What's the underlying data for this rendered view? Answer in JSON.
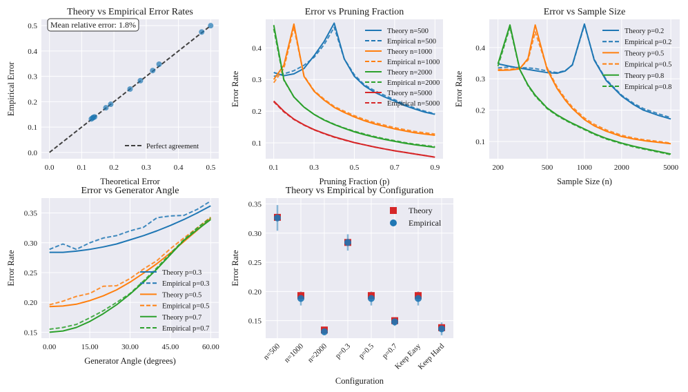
{
  "chart_data": [
    {
      "id": "p1",
      "type": "scatter",
      "title": "Theory vs Empirical Error Rates",
      "xlabel": "Theoretical Error",
      "ylabel": "Empirical Error",
      "xlim": [
        -0.025,
        0.525
      ],
      "ylim": [
        -0.025,
        0.525
      ],
      "xticks": [
        0.0,
        0.1,
        0.2,
        0.3,
        0.4,
        0.5
      ],
      "yticks": [
        0.0,
        0.1,
        0.2,
        0.3,
        0.4,
        0.5
      ],
      "tick_decimals": 1,
      "annotation": "Mean relative error: 1.8%",
      "reference_line": {
        "name": "Perfect agreement",
        "from": [
          0,
          0
        ],
        "to": [
          0.5,
          0.5
        ],
        "color": "#404040"
      },
      "points": [
        [
          0.13,
          0.132
        ],
        [
          0.134,
          0.136
        ],
        [
          0.136,
          0.138
        ],
        [
          0.14,
          0.14
        ],
        [
          0.175,
          0.176
        ],
        [
          0.19,
          0.19
        ],
        [
          0.25,
          0.25
        ],
        [
          0.282,
          0.283
        ],
        [
          0.32,
          0.323
        ],
        [
          0.34,
          0.348
        ],
        [
          0.472,
          0.475
        ],
        [
          0.5,
          0.5
        ]
      ],
      "point_color": "#1f77b4",
      "legend": [
        {
          "name": "Perfect agreement",
          "style": "dashed",
          "color": "#404040"
        }
      ]
    },
    {
      "id": "p2",
      "type": "line",
      "title": "Error vs Pruning Fraction",
      "xlabel": "Pruning Fraction (p)",
      "ylabel": "Error Rate",
      "xlim": [
        0.06,
        0.94
      ],
      "ylim": [
        0.05,
        0.49
      ],
      "xticks": [
        0.1,
        0.3,
        0.5,
        0.7,
        0.9
      ],
      "yticks": [
        0.1,
        0.2,
        0.3,
        0.4
      ],
      "tick_decimals": 1,
      "x": [
        0.1,
        0.15,
        0.2,
        0.25,
        0.3,
        0.35,
        0.4,
        0.45,
        0.5,
        0.55,
        0.6,
        0.65,
        0.7,
        0.75,
        0.8,
        0.85,
        0.9
      ],
      "series": [
        {
          "name": "Theory n=500",
          "color": "#1f77b4",
          "style": "solid",
          "values": [
            0.322,
            0.312,
            0.318,
            0.335,
            0.375,
            0.42,
            0.478,
            0.365,
            0.31,
            0.28,
            0.26,
            0.245,
            0.232,
            0.218,
            0.207,
            0.197,
            0.19
          ]
        },
        {
          "name": "Empirical n=500",
          "color": "#1f77b4",
          "style": "dashed",
          "values": [
            0.31,
            0.318,
            0.328,
            0.345,
            0.37,
            0.41,
            0.465,
            0.365,
            0.315,
            0.283,
            0.265,
            0.25,
            0.236,
            0.222,
            0.21,
            0.2,
            0.192
          ]
        },
        {
          "name": "Theory n=1000",
          "color": "#ff7f0e",
          "style": "solid",
          "values": [
            0.3,
            0.345,
            0.475,
            0.31,
            0.263,
            0.235,
            0.212,
            0.196,
            0.182,
            0.17,
            0.16,
            0.152,
            0.144,
            0.138,
            0.132,
            0.128,
            0.124
          ]
        },
        {
          "name": "Empirical n=1000",
          "color": "#ff7f0e",
          "style": "dashed",
          "values": [
            0.29,
            0.335,
            0.465,
            0.312,
            0.265,
            0.238,
            0.215,
            0.2,
            0.186,
            0.174,
            0.164,
            0.156,
            0.148,
            0.142,
            0.136,
            0.132,
            0.128
          ]
        },
        {
          "name": "Theory n=2000",
          "color": "#2ca02c",
          "style": "solid",
          "values": [
            0.472,
            0.3,
            0.245,
            0.213,
            0.19,
            0.172,
            0.158,
            0.146,
            0.135,
            0.126,
            0.118,
            0.111,
            0.105,
            0.099,
            0.094,
            0.09,
            0.086
          ]
        },
        {
          "name": "Empirical n=2000",
          "color": "#2ca02c",
          "style": "dashed",
          "values": [
            0.46,
            0.298,
            0.245,
            0.213,
            0.19,
            0.173,
            0.159,
            0.147,
            0.137,
            0.128,
            0.12,
            0.113,
            0.107,
            0.101,
            0.096,
            0.092,
            0.088
          ]
        },
        {
          "name": "Theory n=5000",
          "color": "#d62728",
          "style": "solid",
          "values": [
            0.232,
            0.2,
            0.175,
            0.157,
            0.142,
            0.13,
            0.119,
            0.11,
            0.101,
            0.094,
            0.087,
            0.081,
            0.075,
            0.07,
            0.065,
            0.06,
            0.055
          ]
        },
        {
          "name": "Empirical n=5000",
          "color": "#d62728",
          "style": "dashed",
          "values": [
            0.23,
            0.198,
            0.174,
            0.156,
            0.141,
            0.129,
            0.118,
            0.109,
            0.101,
            0.094,
            0.087,
            0.081,
            0.075,
            0.07,
            0.065,
            0.06,
            0.055
          ]
        }
      ]
    },
    {
      "id": "p3",
      "type": "line",
      "title": "Error vs Sample Size",
      "xlabel": "Sample Size (n)",
      "ylabel": "Error Rate",
      "xscale": "log",
      "xlim": [
        170,
        5900
      ],
      "ylim": [
        0.045,
        0.49
      ],
      "xticks": [
        200,
        500,
        1000,
        2000,
        5000
      ],
      "yticks": [
        0.1,
        0.2,
        0.3,
        0.4
      ],
      "tick_decimals": 1,
      "x": [
        200,
        250,
        300,
        350,
        400,
        500,
        600,
        700,
        800,
        1000,
        1200,
        1500,
        2000,
        2500,
        3000,
        4000,
        5000
      ],
      "series": [
        {
          "name": "Theory p=0.2",
          "color": "#1f77b4",
          "style": "solid",
          "values": [
            0.348,
            0.34,
            0.334,
            0.33,
            0.326,
            0.32,
            0.318,
            0.325,
            0.345,
            0.475,
            0.36,
            0.295,
            0.245,
            0.218,
            0.2,
            0.183,
            0.172
          ]
        },
        {
          "name": "Empirical p=0.2",
          "color": "#1f77b4",
          "style": "dashed",
          "values": [
            0.335,
            0.338,
            0.336,
            0.335,
            0.333,
            0.325,
            0.32,
            0.326,
            0.344,
            0.472,
            0.362,
            0.298,
            0.248,
            0.222,
            0.205,
            0.188,
            0.176
          ]
        },
        {
          "name": "Theory p=0.5",
          "color": "#ff7f0e",
          "style": "solid",
          "values": [
            0.327,
            0.328,
            0.332,
            0.365,
            0.472,
            0.33,
            0.27,
            0.232,
            0.205,
            0.17,
            0.15,
            0.133,
            0.116,
            0.108,
            0.103,
            0.097,
            0.093
          ]
        },
        {
          "name": "Empirical p=0.5",
          "color": "#ff7f0e",
          "style": "dashed",
          "values": [
            0.33,
            0.33,
            0.335,
            0.36,
            0.45,
            0.335,
            0.275,
            0.237,
            0.21,
            0.175,
            0.155,
            0.137,
            0.12,
            0.111,
            0.106,
            0.1,
            0.095
          ]
        },
        {
          "name": "Theory p=0.8",
          "color": "#2ca02c",
          "style": "solid",
          "values": [
            0.348,
            0.472,
            0.33,
            0.28,
            0.248,
            0.207,
            0.185,
            0.17,
            0.158,
            0.14,
            0.125,
            0.11,
            0.095,
            0.085,
            0.078,
            0.068,
            0.06
          ]
        },
        {
          "name": "Empirical p=0.8",
          "color": "#2ca02c",
          "style": "dashed",
          "values": [
            0.34,
            0.465,
            0.33,
            0.278,
            0.245,
            0.205,
            0.183,
            0.168,
            0.156,
            0.138,
            0.123,
            0.108,
            0.093,
            0.083,
            0.076,
            0.066,
            0.058
          ]
        }
      ]
    },
    {
      "id": "p4",
      "type": "line",
      "title": "Error vs Generator Angle",
      "xlabel": "Generator Angle (degrees)",
      "ylabel": "Error Rate",
      "xlim": [
        -3,
        63
      ],
      "ylim": [
        0.14,
        0.375
      ],
      "xticks": [
        0,
        15,
        30,
        45,
        60
      ],
      "yticks": [
        0.15,
        0.2,
        0.25,
        0.3,
        0.35
      ],
      "tick_decimals": 2,
      "x": [
        0,
        5,
        10,
        15,
        20,
        25,
        30,
        35,
        40,
        45,
        50,
        55,
        60
      ],
      "series": [
        {
          "name": "Theory p=0.3",
          "color": "#1f77b4",
          "style": "solid",
          "values": [
            0.284,
            0.284,
            0.286,
            0.289,
            0.293,
            0.298,
            0.305,
            0.312,
            0.32,
            0.329,
            0.339,
            0.35,
            0.362
          ]
        },
        {
          "name": "Empirical p=0.3",
          "color": "#1f77b4",
          "style": "dashed",
          "values": [
            0.289,
            0.298,
            0.289,
            0.3,
            0.308,
            0.312,
            0.32,
            0.326,
            0.342,
            0.345,
            0.346,
            0.356,
            0.37
          ]
        },
        {
          "name": "Theory p=0.5",
          "color": "#ff7f0e",
          "style": "solid",
          "values": [
            0.193,
            0.194,
            0.197,
            0.203,
            0.211,
            0.221,
            0.234,
            0.249,
            0.265,
            0.283,
            0.302,
            0.321,
            0.341
          ]
        },
        {
          "name": "Empirical p=0.5",
          "color": "#ff7f0e",
          "style": "dashed",
          "values": [
            0.196,
            0.202,
            0.21,
            0.215,
            0.227,
            0.228,
            0.24,
            0.256,
            0.27,
            0.29,
            0.308,
            0.325,
            0.343
          ]
        },
        {
          "name": "Theory p=0.7",
          "color": "#2ca02c",
          "style": "solid",
          "values": [
            0.15,
            0.152,
            0.158,
            0.168,
            0.181,
            0.196,
            0.214,
            0.234,
            0.256,
            0.28,
            0.304,
            0.322,
            0.339
          ]
        },
        {
          "name": "Empirical p=0.7",
          "color": "#2ca02c",
          "style": "dashed",
          "values": [
            0.155,
            0.158,
            0.163,
            0.174,
            0.186,
            0.2,
            0.215,
            0.236,
            0.258,
            0.282,
            0.305,
            0.325,
            0.342
          ]
        }
      ]
    },
    {
      "id": "p5",
      "type": "scatter",
      "title": "Theory vs Empirical by Configuration",
      "xlabel": "Configuration",
      "ylabel": "Error Rate",
      "ylim": [
        0.12,
        0.36
      ],
      "yticks": [
        0.15,
        0.2,
        0.25,
        0.3,
        0.35
      ],
      "tick_decimals": 2,
      "categories": [
        "n=500",
        "n=1000",
        "n=2000",
        "p=0.3",
        "p=0.5",
        "p=0.7",
        "Keep Easy",
        "Keep Hard"
      ],
      "series": [
        {
          "name": "Theory",
          "color": "#d62728",
          "marker": "square",
          "values": [
            0.327,
            0.193,
            0.134,
            0.284,
            0.193,
            0.15,
            0.193,
            0.138
          ]
        },
        {
          "name": "Empirical",
          "color": "#1f77b4",
          "marker": "circle",
          "values": [
            0.326,
            0.188,
            0.131,
            0.284,
            0.188,
            0.148,
            0.188,
            0.136
          ],
          "error": [
            0.022,
            0.012,
            0.006,
            0.014,
            0.012,
            0.007,
            0.012,
            0.011
          ]
        }
      ]
    }
  ]
}
